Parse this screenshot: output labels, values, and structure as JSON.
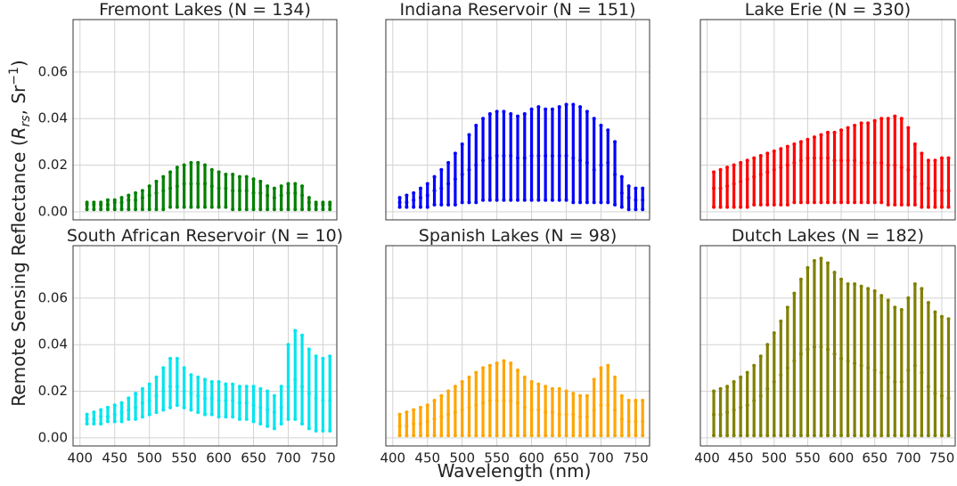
{
  "figure": {
    "xlabel": "Wavelength (nm)",
    "ylabel": [
      "Remote Sensing Reflectance (",
      "R",
      "rs",
      ", Sr",
      "−1",
      ")"
    ]
  },
  "chart_data": [
    {
      "type": "scatter",
      "title": "Fremont Lakes (N = 134)",
      "color": "#008000",
      "grid": true,
      "x": [
        410,
        420,
        430,
        440,
        450,
        460,
        470,
        480,
        490,
        500,
        510,
        520,
        530,
        540,
        550,
        560,
        570,
        580,
        590,
        600,
        610,
        620,
        630,
        640,
        650,
        660,
        670,
        680,
        690,
        700,
        710,
        720,
        730,
        740,
        750,
        760
      ],
      "series": [
        {
          "values": [
            0.004,
            0.004,
            0.004,
            0.005,
            0.005,
            0.006,
            0.007,
            0.008,
            0.009,
            0.011,
            0.013,
            0.015,
            0.017,
            0.019,
            0.02,
            0.021,
            0.021,
            0.02,
            0.018,
            0.017,
            0.016,
            0.016,
            0.015,
            0.015,
            0.014,
            0.013,
            0.011,
            0.01,
            0.011,
            0.012,
            0.012,
            0.011,
            0.006,
            0.004,
            0.004,
            0.004
          ]
        },
        {
          "values": [
            0.003,
            0.003,
            0.003,
            0.003,
            0.004,
            0.004,
            0.005,
            0.005,
            0.006,
            0.007,
            0.008,
            0.009,
            0.01,
            0.011,
            0.012,
            0.012,
            0.012,
            0.012,
            0.011,
            0.01,
            0.01,
            0.009,
            0.009,
            0.009,
            0.008,
            0.008,
            0.007,
            0.006,
            0.007,
            0.008,
            0.008,
            0.007,
            0.004,
            0.003,
            0.003,
            0.003
          ]
        },
        {
          "values": [
            0.001,
            0.001,
            0.001,
            0.001,
            0.001,
            0.001,
            0.001,
            0.001,
            0.001,
            0.001,
            0.001,
            0.001,
            0.002,
            0.002,
            0.002,
            0.002,
            0.002,
            0.002,
            0.002,
            0.002,
            0.002,
            0.001,
            0.001,
            0.001,
            0.001,
            0.001,
            0.001,
            0.001,
            0.001,
            0.001,
            0.001,
            0.001,
            0.001,
            0.001,
            0.001,
            0.001
          ]
        }
      ],
      "xlim": [
        390,
        770
      ],
      "ylim": [
        -0.0035,
        0.0825
      ],
      "xticks": [
        400,
        450,
        500,
        550,
        600,
        650,
        700,
        750
      ],
      "yticks": [
        {
          "value": 0,
          "label": "0.00"
        },
        0.02,
        0.04,
        0.06
      ]
    },
    {
      "type": "scatter",
      "title": "Indiana Reservoir (N = 151)",
      "color": "#0000ff",
      "grid": true,
      "x": [
        410,
        420,
        430,
        440,
        450,
        460,
        470,
        480,
        490,
        500,
        510,
        520,
        530,
        540,
        550,
        560,
        570,
        580,
        590,
        600,
        610,
        620,
        630,
        640,
        650,
        660,
        670,
        680,
        690,
        700,
        710,
        720,
        730,
        740,
        750,
        760
      ],
      "series": [
        {
          "values": [
            0.006,
            0.007,
            0.008,
            0.01,
            0.012,
            0.015,
            0.018,
            0.021,
            0.025,
            0.029,
            0.033,
            0.037,
            0.04,
            0.042,
            0.043,
            0.043,
            0.042,
            0.041,
            0.042,
            0.044,
            0.045,
            0.044,
            0.044,
            0.045,
            0.046,
            0.046,
            0.045,
            0.043,
            0.04,
            0.037,
            0.035,
            0.03,
            0.015,
            0.011,
            0.01,
            0.01
          ]
        },
        {
          "values": [
            0.004,
            0.004,
            0.005,
            0.006,
            0.007,
            0.009,
            0.01,
            0.012,
            0.014,
            0.016,
            0.018,
            0.02,
            0.022,
            0.023,
            0.024,
            0.024,
            0.024,
            0.023,
            0.023,
            0.024,
            0.024,
            0.024,
            0.024,
            0.024,
            0.024,
            0.023,
            0.022,
            0.021,
            0.018,
            0.02,
            0.021,
            0.016,
            0.008,
            0.006,
            0.005,
            0.005
          ]
        },
        {
          "values": [
            0.002,
            0.002,
            0.002,
            0.002,
            0.002,
            0.003,
            0.003,
            0.003,
            0.003,
            0.004,
            0.004,
            0.004,
            0.005,
            0.005,
            0.005,
            0.005,
            0.005,
            0.005,
            0.005,
            0.005,
            0.005,
            0.005,
            0.005,
            0.005,
            0.005,
            0.004,
            0.004,
            0.004,
            0.004,
            0.004,
            0.004,
            0.003,
            0.002,
            0.001,
            0.001,
            0.001
          ]
        }
      ],
      "xlim": [
        390,
        770
      ],
      "ylim": [
        -0.0035,
        0.0825
      ],
      "xticks": [
        400,
        450,
        500,
        550,
        600,
        650,
        700,
        750
      ],
      "yticks": [
        {
          "value": 0,
          "label": "0.00"
        },
        0.02,
        0.04,
        0.06
      ]
    },
    {
      "type": "scatter",
      "title": "Lake Erie (N = 330)",
      "color": "#ff0000",
      "grid": true,
      "x": [
        410,
        420,
        430,
        440,
        450,
        460,
        470,
        480,
        490,
        500,
        510,
        520,
        530,
        540,
        550,
        560,
        570,
        580,
        590,
        600,
        610,
        620,
        630,
        640,
        650,
        660,
        670,
        680,
        690,
        700,
        710,
        720,
        730,
        740,
        750,
        760
      ],
      "series": [
        {
          "values": [
            0.017,
            0.018,
            0.019,
            0.02,
            0.021,
            0.022,
            0.023,
            0.024,
            0.025,
            0.026,
            0.027,
            0.028,
            0.029,
            0.03,
            0.031,
            0.032,
            0.033,
            0.034,
            0.034,
            0.035,
            0.036,
            0.037,
            0.038,
            0.038,
            0.039,
            0.04,
            0.04,
            0.041,
            0.04,
            0.036,
            0.029,
            0.025,
            0.022,
            0.022,
            0.023,
            0.023
          ]
        },
        {
          "values": [
            0.01,
            0.01,
            0.011,
            0.012,
            0.013,
            0.014,
            0.015,
            0.016,
            0.017,
            0.018,
            0.019,
            0.02,
            0.021,
            0.022,
            0.023,
            0.023,
            0.023,
            0.023,
            0.022,
            0.022,
            0.022,
            0.022,
            0.021,
            0.021,
            0.021,
            0.021,
            0.02,
            0.02,
            0.019,
            0.018,
            0.015,
            0.012,
            0.01,
            0.009,
            0.009,
            0.009
          ]
        },
        {
          "values": [
            0.002,
            0.002,
            0.002,
            0.002,
            0.002,
            0.002,
            0.003,
            0.003,
            0.003,
            0.003,
            0.003,
            0.003,
            0.004,
            0.004,
            0.004,
            0.004,
            0.004,
            0.004,
            0.004,
            0.004,
            0.004,
            0.004,
            0.004,
            0.004,
            0.004,
            0.004,
            0.003,
            0.003,
            0.003,
            0.003,
            0.003,
            0.002,
            0.002,
            0.002,
            0.002,
            0.002
          ]
        }
      ],
      "xlim": [
        390,
        770
      ],
      "ylim": [
        -0.0035,
        0.0825
      ],
      "xticks": [
        400,
        450,
        500,
        550,
        600,
        650,
        700,
        750
      ],
      "yticks": [
        {
          "value": 0,
          "label": "0.00"
        },
        0.02,
        0.04,
        0.06
      ]
    },
    {
      "type": "scatter",
      "title": "South African Reservoir (N = 10)",
      "color": "#00e5ee",
      "grid": true,
      "x": [
        410,
        420,
        430,
        440,
        450,
        460,
        470,
        480,
        490,
        500,
        510,
        520,
        530,
        540,
        550,
        560,
        570,
        580,
        590,
        600,
        610,
        620,
        630,
        640,
        650,
        660,
        670,
        680,
        690,
        700,
        710,
        720,
        730,
        740,
        750,
        760
      ],
      "series": [
        {
          "values": [
            0.01,
            0.011,
            0.012,
            0.013,
            0.014,
            0.015,
            0.017,
            0.019,
            0.021,
            0.023,
            0.026,
            0.03,
            0.034,
            0.034,
            0.03,
            0.027,
            0.026,
            0.025,
            0.024,
            0.024,
            0.023,
            0.023,
            0.022,
            0.022,
            0.022,
            0.021,
            0.02,
            0.018,
            0.022,
            0.04,
            0.046,
            0.044,
            0.038,
            0.035,
            0.034,
            0.035
          ]
        },
        {
          "values": [
            0.008,
            0.008,
            0.009,
            0.009,
            0.01,
            0.011,
            0.012,
            0.013,
            0.015,
            0.016,
            0.018,
            0.02,
            0.022,
            0.022,
            0.02,
            0.019,
            0.018,
            0.017,
            0.017,
            0.016,
            0.016,
            0.016,
            0.015,
            0.015,
            0.014,
            0.013,
            0.012,
            0.011,
            0.013,
            0.022,
            0.025,
            0.022,
            0.019,
            0.017,
            0.016,
            0.016
          ]
        },
        {
          "values": [
            0.006,
            0.006,
            0.006,
            0.007,
            0.007,
            0.007,
            0.008,
            0.008,
            0.009,
            0.01,
            0.011,
            0.012,
            0.013,
            0.014,
            0.013,
            0.012,
            0.011,
            0.01,
            0.01,
            0.009,
            0.009,
            0.009,
            0.008,
            0.008,
            0.007,
            0.006,
            0.005,
            0.004,
            0.006,
            0.008,
            0.008,
            0.006,
            0.004,
            0.003,
            0.003,
            0.003
          ]
        }
      ],
      "xlim": [
        390,
        770
      ],
      "ylim": [
        -0.0035,
        0.0825
      ],
      "xticks": [
        400,
        450,
        500,
        550,
        600,
        650,
        700,
        750
      ],
      "yticks": [
        {
          "value": 0,
          "label": "0.00"
        },
        0.02,
        0.04,
        0.06
      ]
    },
    {
      "type": "scatter",
      "title": "Spanish Lakes (N = 98)",
      "color": "#ffa500",
      "grid": true,
      "x": [
        410,
        420,
        430,
        440,
        450,
        460,
        470,
        480,
        490,
        500,
        510,
        520,
        530,
        540,
        550,
        560,
        570,
        580,
        590,
        600,
        610,
        620,
        630,
        640,
        650,
        660,
        670,
        680,
        690,
        700,
        710,
        720,
        730,
        740,
        750,
        760
      ],
      "series": [
        {
          "values": [
            0.01,
            0.011,
            0.012,
            0.013,
            0.014,
            0.016,
            0.018,
            0.02,
            0.022,
            0.024,
            0.026,
            0.028,
            0.03,
            0.031,
            0.032,
            0.033,
            0.032,
            0.029,
            0.026,
            0.024,
            0.023,
            0.022,
            0.021,
            0.021,
            0.02,
            0.019,
            0.018,
            0.018,
            0.025,
            0.03,
            0.031,
            0.026,
            0.018,
            0.016,
            0.016,
            0.016
          ]
        },
        {
          "values": [
            0.005,
            0.005,
            0.006,
            0.006,
            0.007,
            0.008,
            0.009,
            0.01,
            0.011,
            0.012,
            0.013,
            0.014,
            0.015,
            0.016,
            0.016,
            0.016,
            0.016,
            0.015,
            0.013,
            0.012,
            0.012,
            0.011,
            0.011,
            0.01,
            0.01,
            0.01,
            0.009,
            0.009,
            0.012,
            0.014,
            0.014,
            0.012,
            0.008,
            0.007,
            0.007,
            0.007
          ]
        },
        {
          "values": [
            0.001,
            0.001,
            0.001,
            0.001,
            0.001,
            0.001,
            0.001,
            0.001,
            0.001,
            0.001,
            0.001,
            0.001,
            0.001,
            0.001,
            0.001,
            0.001,
            0.001,
            0.001,
            0.001,
            0.001,
            0.001,
            0.001,
            0.001,
            0.001,
            0.001,
            0.001,
            0.001,
            0.001,
            0.001,
            0.001,
            0.001,
            0.001,
            0.001,
            0.001,
            0.001,
            0.001
          ]
        }
      ],
      "xlim": [
        390,
        770
      ],
      "ylim": [
        -0.0035,
        0.0825
      ],
      "xticks": [
        400,
        450,
        500,
        550,
        600,
        650,
        700,
        750
      ],
      "yticks": [
        {
          "value": 0,
          "label": "0.00"
        },
        0.02,
        0.04,
        0.06
      ]
    },
    {
      "type": "scatter",
      "title": "Dutch Lakes (N = 182)",
      "color": "#808000",
      "grid": true,
      "x": [
        410,
        420,
        430,
        440,
        450,
        460,
        470,
        480,
        490,
        500,
        510,
        520,
        530,
        540,
        550,
        560,
        570,
        580,
        590,
        600,
        610,
        620,
        630,
        640,
        650,
        660,
        670,
        680,
        690,
        700,
        710,
        720,
        730,
        740,
        750,
        760
      ],
      "series": [
        {
          "values": [
            0.02,
            0.021,
            0.022,
            0.024,
            0.026,
            0.028,
            0.031,
            0.035,
            0.04,
            0.045,
            0.05,
            0.056,
            0.062,
            0.068,
            0.073,
            0.076,
            0.077,
            0.075,
            0.071,
            0.068,
            0.066,
            0.066,
            0.065,
            0.064,
            0.063,
            0.061,
            0.059,
            0.056,
            0.055,
            0.06,
            0.066,
            0.064,
            0.058,
            0.054,
            0.052,
            0.051
          ]
        },
        {
          "values": [
            0.01,
            0.01,
            0.011,
            0.012,
            0.013,
            0.014,
            0.016,
            0.018,
            0.021,
            0.024,
            0.027,
            0.03,
            0.033,
            0.036,
            0.038,
            0.039,
            0.039,
            0.038,
            0.036,
            0.034,
            0.033,
            0.032,
            0.031,
            0.03,
            0.029,
            0.028,
            0.026,
            0.024,
            0.024,
            0.029,
            0.031,
            0.028,
            0.022,
            0.019,
            0.018,
            0.017
          ]
        },
        {
          "values": [
            0.001,
            0.001,
            0.001,
            0.001,
            0.001,
            0.001,
            0.001,
            0.001,
            0.001,
            0.001,
            0.001,
            0.001,
            0.001,
            0.001,
            0.001,
            0.001,
            0.001,
            0.001,
            0.001,
            0.001,
            0.001,
            0.001,
            0.001,
            0.001,
            0.001,
            0.001,
            0.001,
            0.001,
            0.001,
            0.001,
            0.001,
            0.001,
            0.001,
            0.001,
            0.001,
            0.001
          ]
        }
      ],
      "xlim": [
        390,
        770
      ],
      "ylim": [
        -0.0035,
        0.0825
      ],
      "xticks": [
        400,
        450,
        500,
        550,
        600,
        650,
        700,
        750
      ],
      "yticks": [
        {
          "value": 0,
          "label": "0.00"
        },
        0.02,
        0.04,
        0.06
      ]
    }
  ]
}
